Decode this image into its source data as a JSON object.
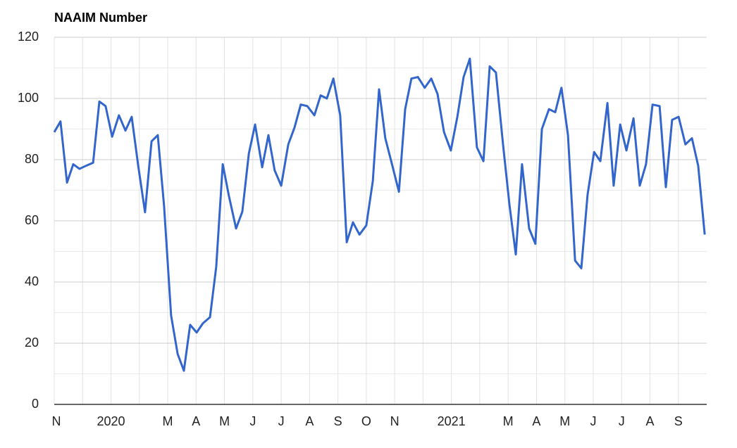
{
  "chart_data": {
    "type": "line",
    "title": "NAAIM Number",
    "xlim": [
      0,
      23
    ],
    "xticks": [
      {
        "value": 0,
        "label": "N"
      },
      {
        "value": 1,
        "label": null
      },
      {
        "value": 2,
        "label": "2020"
      },
      {
        "value": 3,
        "label": null
      },
      {
        "value": 4,
        "label": "M"
      },
      {
        "value": 5,
        "label": "A"
      },
      {
        "value": 6,
        "label": "M"
      },
      {
        "value": 7,
        "label": "J"
      },
      {
        "value": 8,
        "label": "J"
      },
      {
        "value": 9,
        "label": "A"
      },
      {
        "value": 10,
        "label": "S"
      },
      {
        "value": 11,
        "label": "O"
      },
      {
        "value": 12,
        "label": "N"
      },
      {
        "value": 13,
        "label": null
      },
      {
        "value": 14,
        "label": "2021"
      },
      {
        "value": 15,
        "label": null
      },
      {
        "value": 16,
        "label": "M"
      },
      {
        "value": 17,
        "label": "A"
      },
      {
        "value": 18,
        "label": "M"
      },
      {
        "value": 19,
        "label": "J"
      },
      {
        "value": 20,
        "label": "J"
      },
      {
        "value": 21,
        "label": "A"
      },
      {
        "value": 22,
        "label": "S"
      }
    ],
    "ylim": [
      0,
      120
    ],
    "yticks": [
      0,
      20,
      40,
      60,
      80,
      100,
      120
    ],
    "yminorticks": [
      10,
      30,
      50,
      70,
      90,
      110
    ],
    "grid": true,
    "x": [
      0,
      0.22,
      0.45,
      0.67,
      0.89,
      1.12,
      1.37,
      1.59,
      1.81,
      2.04,
      2.28,
      2.51,
      2.73,
      2.96,
      3.2,
      3.43,
      3.65,
      3.87,
      4.12,
      4.35,
      4.57,
      4.79,
      5.02,
      5.24,
      5.49,
      5.71,
      5.94,
      6.16,
      6.41,
      6.63,
      6.86,
      7.08,
      7.33,
      7.55,
      7.77,
      8.0,
      8.25,
      8.47,
      8.69,
      8.92,
      9.17,
      9.39,
      9.61,
      9.84,
      10.08,
      10.31,
      10.53,
      10.76,
      11.0,
      11.23,
      11.45,
      11.67,
      11.92,
      12.15,
      12.37,
      12.59,
      12.82,
      13.06,
      13.29,
      13.51,
      13.74,
      13.98,
      14.21,
      14.43,
      14.65,
      14.9,
      15.13,
      15.35,
      15.57,
      15.82,
      16.05,
      16.27,
      16.49,
      16.74,
      16.96,
      17.19,
      17.44,
      17.66,
      17.88,
      18.11,
      18.36,
      18.58,
      18.8,
      19.03,
      19.25,
      19.5,
      19.72,
      19.95,
      20.17,
      20.42,
      20.64,
      20.86,
      21.09,
      21.34,
      21.56,
      21.78,
      22.01,
      22.25,
      22.48,
      22.7,
      22.93
    ],
    "series": [
      {
        "color": "#3366cc",
        "values": [
          89,
          92.5,
          72.5,
          78.5,
          77,
          78,
          79,
          99,
          97.5,
          87.5,
          94.5,
          89.5,
          94,
          78,
          62.8,
          86,
          88,
          65,
          29,
          16.5,
          11,
          26,
          23.5,
          26.5,
          28.5,
          45,
          78.5,
          68,
          57.5,
          63,
          82,
          91.5,
          77.5,
          88,
          76.5,
          71.5,
          85,
          90.5,
          98,
          97.5,
          94.5,
          101,
          100,
          106.5,
          94.5,
          53,
          59.5,
          55.5,
          58.5,
          73,
          103,
          87,
          78,
          69.5,
          96.5,
          106.5,
          107,
          103.5,
          106.5,
          101.5,
          89,
          83,
          94,
          107,
          113,
          84,
          79.5,
          110.5,
          108.5,
          85,
          65,
          49,
          78.5,
          57.5,
          52.5,
          90,
          96.5,
          95.5,
          103.5,
          88,
          47,
          44.5,
          68.5,
          82.5,
          79.5,
          98.5,
          71.5,
          91.5,
          83,
          93.5,
          71.5,
          78.5,
          98,
          97.5,
          71,
          93,
          94,
          85,
          87,
          78,
          55.5
        ]
      }
    ]
  }
}
